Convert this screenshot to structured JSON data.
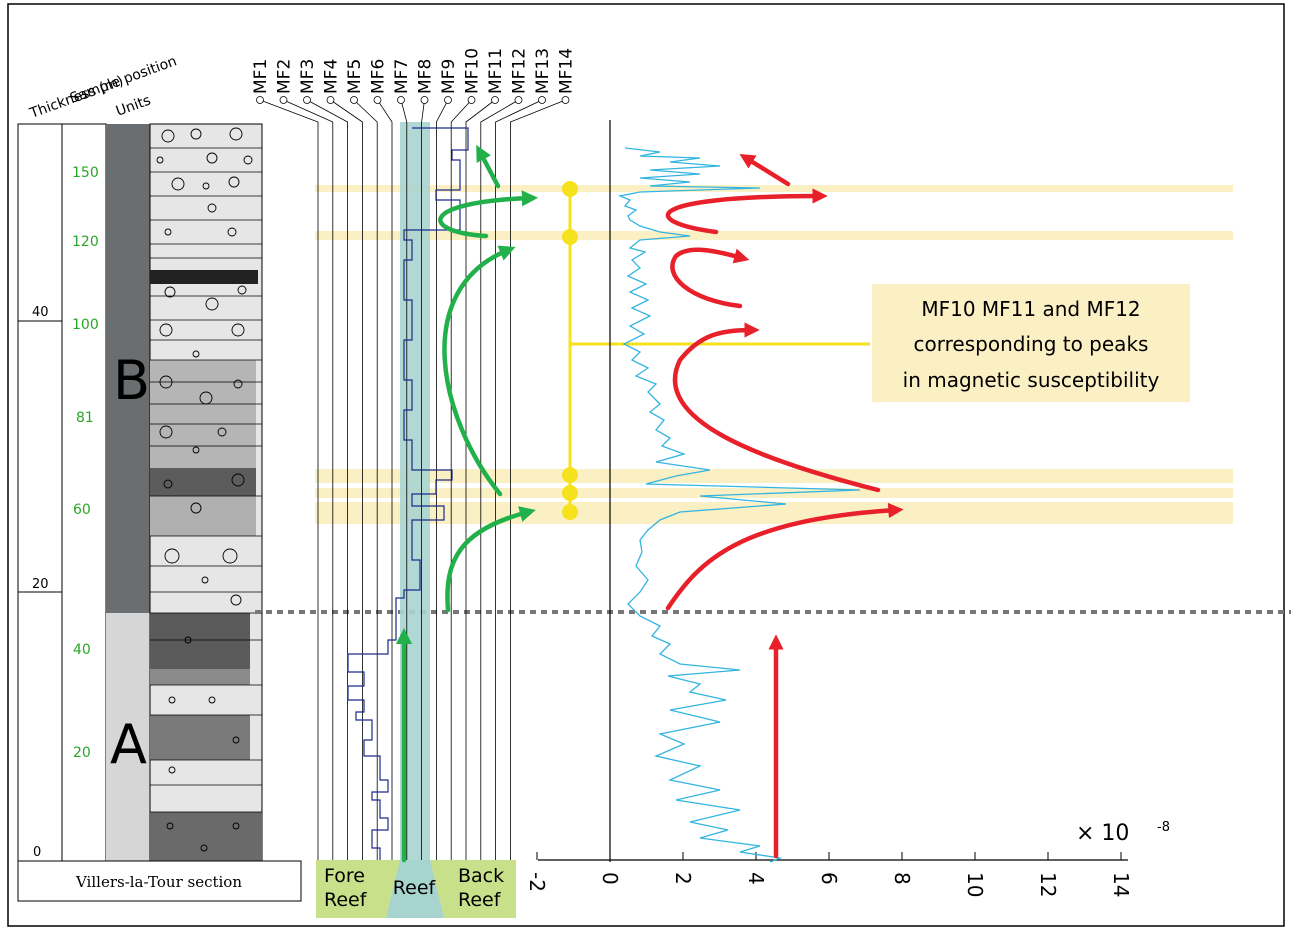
{
  "column_headers": {
    "thickness": "Thickness (m)",
    "sample": "Sample position",
    "units": "Units"
  },
  "thickness_ticks": [
    "0",
    "20",
    "40"
  ],
  "sample_ticks": [
    "20",
    "40",
    "60",
    "81",
    "100",
    "120",
    "150"
  ],
  "unit_labels": [
    "A",
    "B"
  ],
  "section_title": "Villers-la-Tour section",
  "microfacies": [
    "MF1",
    "MF2",
    "MF3",
    "MF4",
    "MF5",
    "MF6",
    "MF7",
    "MF8",
    "MF9",
    "MF10",
    "MF11",
    "MF12",
    "MF13",
    "MF14"
  ],
  "environments": {
    "fore_reef_1": "Fore",
    "fore_reef_2": "Reef",
    "reef": "Reef",
    "back_reef_1": "Back",
    "back_reef_2": "Reef"
  },
  "annotation": {
    "line1": "MF10 MF11 and MF12",
    "line2": "corresponding to peaks",
    "line3": "in magnetic susceptibility"
  },
  "ms_axis": {
    "ticks": [
      "-2",
      "0",
      "2",
      "4",
      "6",
      "8",
      "10",
      "12",
      "14"
    ],
    "multiplier": "× 10",
    "exponent": "-8"
  },
  "colors": {
    "reef_band": "#a8d4d0",
    "env_box": "#c8e08a",
    "highlight_band": "#fbefc4",
    "ms_curve": "#33b5e0",
    "green_arrow": "#22b04b",
    "red_arrow": "#e8202a",
    "yellow": "#f5e21d",
    "microfacies_line": "#1c2a8c"
  }
}
